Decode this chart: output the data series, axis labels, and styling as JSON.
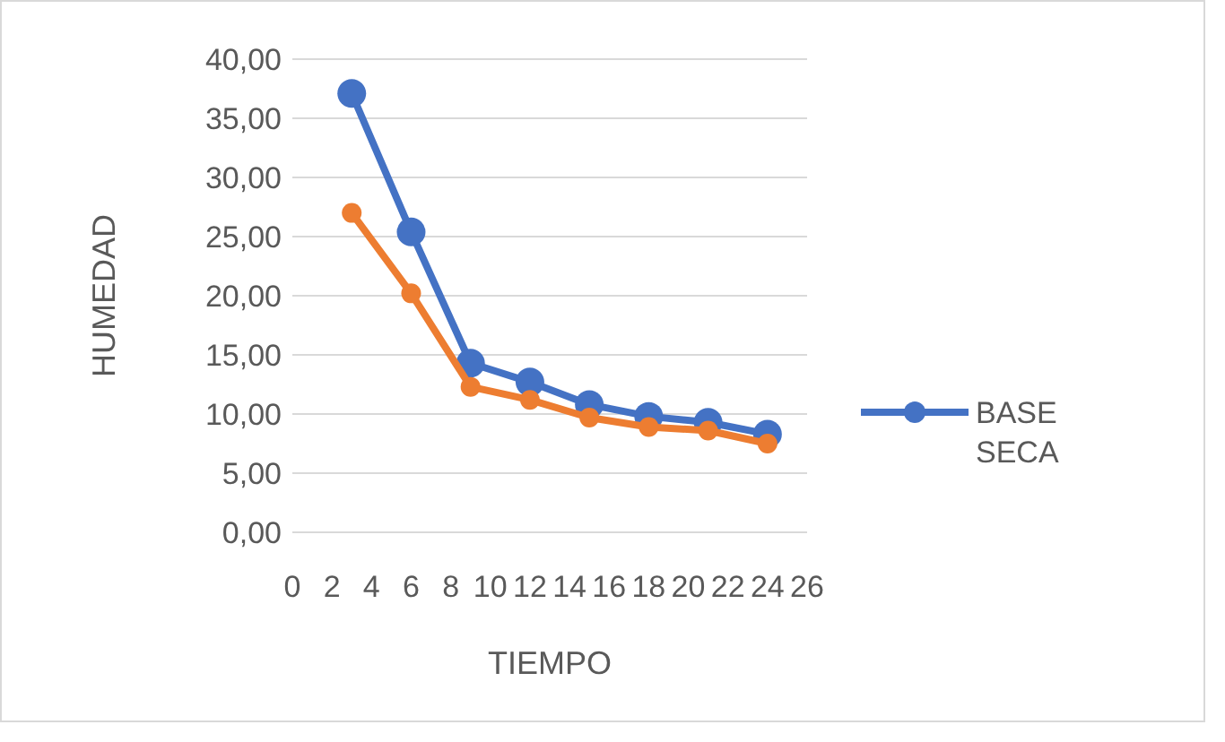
{
  "chart_data": {
    "type": "line",
    "xlabel": "TIEMPO",
    "ylabel": "HUMEDAD",
    "x": [
      3,
      6,
      9,
      12,
      15,
      18,
      21,
      24
    ],
    "series": [
      {
        "name": "BASE SECA",
        "color": "#4472c4",
        "values": [
          37.1,
          25.4,
          14.3,
          12.7,
          10.8,
          9.8,
          9.3,
          8.3
        ]
      },
      {
        "color": "#ed7d31",
        "values": [
          27.0,
          20.2,
          12.3,
          11.2,
          9.7,
          8.9,
          8.6,
          7.5
        ]
      }
    ],
    "xlim": [
      0,
      26
    ],
    "xticks": [
      0,
      2,
      4,
      6,
      8,
      10,
      12,
      14,
      16,
      18,
      20,
      22,
      24,
      26
    ],
    "ylim": [
      0,
      40
    ],
    "yticks": [
      {
        "value": 0,
        "label": "0,00"
      },
      {
        "value": 5,
        "label": "5,00"
      },
      {
        "value": 10,
        "label": "10,00"
      },
      {
        "value": 15,
        "label": "15,00"
      },
      {
        "value": 20,
        "label": "20,00"
      },
      {
        "value": 25,
        "label": "25,00"
      },
      {
        "value": 30,
        "label": "30,00"
      },
      {
        "value": 35,
        "label": "35,00"
      },
      {
        "value": 40,
        "label": "40,00"
      }
    ],
    "grid": "y",
    "legend": "right",
    "marker": "circle",
    "line_style": "solid"
  }
}
